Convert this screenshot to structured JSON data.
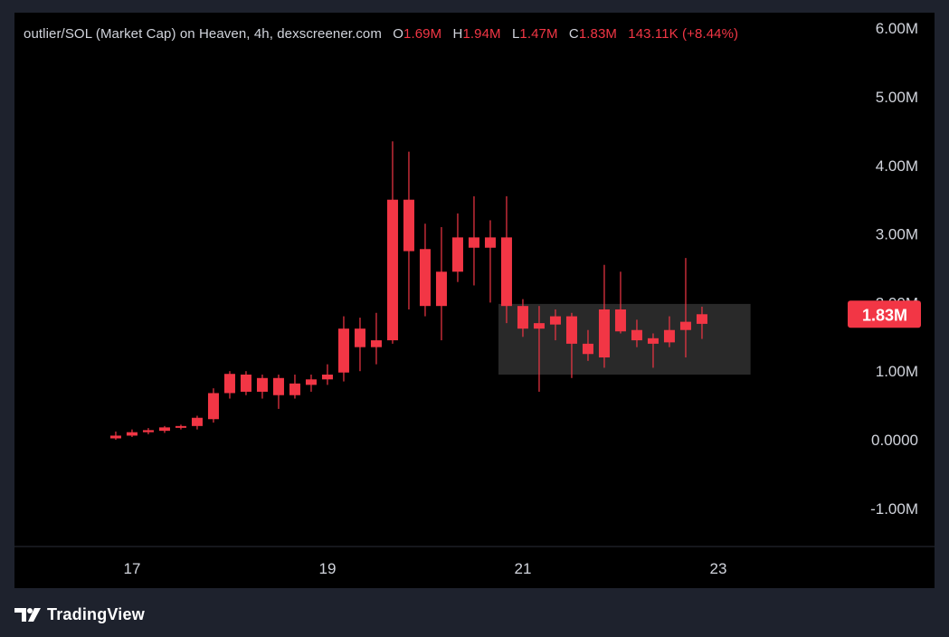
{
  "legend": {
    "symbol": "outlier/SOL (Market Cap) on Heaven, 4h, dexscreener.com",
    "open_key": "O",
    "open": "1.69M",
    "high_key": "H",
    "high": "1.94M",
    "low_key": "L",
    "low": "1.47M",
    "close_key": "C",
    "close": "1.83M",
    "change": "143.11K (+8.44%)"
  },
  "last_price_label": "1.83M",
  "brand": "TradingView",
  "colors": {
    "candle": "#f23645",
    "background": "#000000",
    "frame": "#1e222d",
    "text": "#d1d4dc",
    "range_box": "#2b2b2b"
  },
  "chart_data": {
    "type": "candlestick",
    "x_axis": {
      "ticks": [
        "17",
        "19",
        "21",
        "23"
      ],
      "tick_positions_day": [
        17,
        19,
        21,
        23
      ]
    },
    "y_axis": {
      "ticks": [
        "6.00M",
        "5.00M",
        "4.00M",
        "3.00M",
        "2.00M",
        "1.00M",
        "0.0000",
        "-1.00M"
      ],
      "tick_values": [
        6,
        5,
        4,
        3,
        2,
        1,
        0,
        -1
      ],
      "units": "M",
      "range": [
        -1.5,
        6.3
      ]
    },
    "interval_hours": 4,
    "first_candle_day": 16.833,
    "candles": [
      {
        "o": 0.02,
        "h": 0.12,
        "l": 0.0,
        "c": 0.06
      },
      {
        "o": 0.06,
        "h": 0.15,
        "l": 0.04,
        "c": 0.11
      },
      {
        "o": 0.11,
        "h": 0.17,
        "l": 0.08,
        "c": 0.14
      },
      {
        "o": 0.13,
        "h": 0.2,
        "l": 0.1,
        "c": 0.18
      },
      {
        "o": 0.18,
        "h": 0.22,
        "l": 0.15,
        "c": 0.2
      },
      {
        "o": 0.2,
        "h": 0.35,
        "l": 0.15,
        "c": 0.32
      },
      {
        "o": 0.3,
        "h": 0.75,
        "l": 0.25,
        "c": 0.68
      },
      {
        "o": 0.68,
        "h": 1.0,
        "l": 0.6,
        "c": 0.96
      },
      {
        "o": 0.7,
        "h": 1.0,
        "l": 0.65,
        "c": 0.95
      },
      {
        "o": 0.7,
        "h": 0.95,
        "l": 0.6,
        "c": 0.9
      },
      {
        "o": 0.9,
        "h": 0.95,
        "l": 0.45,
        "c": 0.65
      },
      {
        "o": 0.65,
        "h": 0.95,
        "l": 0.6,
        "c": 0.82
      },
      {
        "o": 0.8,
        "h": 0.95,
        "l": 0.7,
        "c": 0.88
      },
      {
        "o": 0.88,
        "h": 1.1,
        "l": 0.8,
        "c": 0.95
      },
      {
        "o": 0.98,
        "h": 1.8,
        "l": 0.85,
        "c": 1.62
      },
      {
        "o": 1.62,
        "h": 1.78,
        "l": 1.0,
        "c": 1.35
      },
      {
        "o": 1.35,
        "h": 1.85,
        "l": 1.1,
        "c": 1.45
      },
      {
        "o": 1.45,
        "h": 4.35,
        "l": 1.4,
        "c": 3.5
      },
      {
        "o": 3.5,
        "h": 4.2,
        "l": 1.9,
        "c": 2.75
      },
      {
        "o": 2.78,
        "h": 3.15,
        "l": 1.8,
        "c": 1.95
      },
      {
        "o": 1.95,
        "h": 3.1,
        "l": 1.45,
        "c": 2.45
      },
      {
        "o": 2.45,
        "h": 3.3,
        "l": 2.3,
        "c": 2.95
      },
      {
        "o": 2.8,
        "h": 3.55,
        "l": 2.25,
        "c": 2.95
      },
      {
        "o": 2.95,
        "h": 3.2,
        "l": 2.0,
        "c": 2.8
      },
      {
        "o": 2.95,
        "h": 3.55,
        "l": 1.7,
        "c": 1.95
      },
      {
        "o": 1.95,
        "h": 2.05,
        "l": 1.5,
        "c": 1.62
      },
      {
        "o": 1.62,
        "h": 1.95,
        "l": 0.7,
        "c": 1.7
      },
      {
        "o": 1.8,
        "h": 1.9,
        "l": 1.45,
        "c": 1.68
      },
      {
        "o": 1.8,
        "h": 1.85,
        "l": 0.9,
        "c": 1.4
      },
      {
        "o": 1.4,
        "h": 1.6,
        "l": 1.15,
        "c": 1.25
      },
      {
        "o": 1.2,
        "h": 2.55,
        "l": 1.05,
        "c": 1.9
      },
      {
        "o": 1.9,
        "h": 2.45,
        "l": 1.55,
        "c": 1.58
      },
      {
        "o": 1.6,
        "h": 1.75,
        "l": 1.35,
        "c": 1.45
      },
      {
        "o": 1.48,
        "h": 1.55,
        "l": 1.05,
        "c": 1.4
      },
      {
        "o": 1.42,
        "h": 1.8,
        "l": 1.35,
        "c": 1.6
      },
      {
        "o": 1.6,
        "h": 2.65,
        "l": 1.2,
        "c": 1.72
      },
      {
        "o": 1.69,
        "h": 1.94,
        "l": 1.47,
        "c": 1.83
      }
    ],
    "range_box": {
      "y_top": 1.98,
      "y_bottom": 0.95,
      "x_start_day": 20.75,
      "x_end_day": 23.33
    },
    "last_price": 1.83
  }
}
